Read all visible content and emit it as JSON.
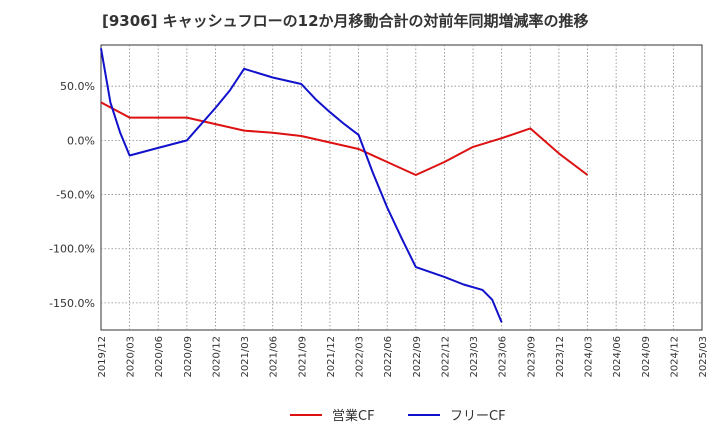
{
  "chart_data": {
    "type": "line",
    "title": "[9306]  キャッシュフローの12か月移動合計の対前年同期増減率の推移",
    "xlabel": "",
    "ylabel": "",
    "ylim": [
      -175,
      88
    ],
    "y_ticks": [
      50,
      0,
      -50,
      -100,
      -150
    ],
    "y_tick_labels": [
      "50.0%",
      "0.0%",
      "-50.0%",
      "-100.0%",
      "-150.0%"
    ],
    "x_categories": [
      "2019/12",
      "2020/03",
      "2020/06",
      "2020/09",
      "2020/12",
      "2021/03",
      "2021/06",
      "2021/09",
      "2021/12",
      "2022/03",
      "2022/06",
      "2022/09",
      "2022/12",
      "2023/03",
      "2023/06",
      "2023/09",
      "2023/12",
      "2024/03",
      "2024/06",
      "2024/09",
      "2024/12",
      "2025/03"
    ],
    "series": [
      {
        "name": "営業CF",
        "color": "#dd1111",
        "points": [
          {
            "x": 0,
            "y": 35
          },
          {
            "x": 1,
            "y": 21
          },
          {
            "x": 2,
            "y": 21
          },
          {
            "x": 3,
            "y": 21
          },
          {
            "x": 4,
            "y": 15
          },
          {
            "x": 5,
            "y": 9
          },
          {
            "x": 6,
            "y": 7
          },
          {
            "x": 7,
            "y": 4
          },
          {
            "x": 8,
            "y": -2
          },
          {
            "x": 9,
            "y": -8
          },
          {
            "x": 10,
            "y": -20
          },
          {
            "x": 11,
            "y": -32
          },
          {
            "x": 12,
            "y": -20
          },
          {
            "x": 13,
            "y": -6
          },
          {
            "x": 14,
            "y": 2
          },
          {
            "x": 15,
            "y": 11
          },
          {
            "x": 16,
            "y": -12
          },
          {
            "x": 17,
            "y": -32
          }
        ]
      },
      {
        "name": "フリーCF",
        "color": "#1111cc",
        "points": [
          {
            "x": 0,
            "y": 85
          },
          {
            "x": 0.33,
            "y": 35
          },
          {
            "x": 0.67,
            "y": 7
          },
          {
            "x": 1,
            "y": -14
          },
          {
            "x": 2,
            "y": -7
          },
          {
            "x": 3,
            "y": 0
          },
          {
            "x": 3.5,
            "y": 15
          },
          {
            "x": 4,
            "y": 30
          },
          {
            "x": 4.5,
            "y": 46
          },
          {
            "x": 5,
            "y": 66
          },
          {
            "x": 6,
            "y": 58
          },
          {
            "x": 7,
            "y": 52
          },
          {
            "x": 7.5,
            "y": 38
          },
          {
            "x": 8,
            "y": 26
          },
          {
            "x": 8.5,
            "y": 15
          },
          {
            "x": 9,
            "y": 5
          },
          {
            "x": 9.5,
            "y": -30
          },
          {
            "x": 10,
            "y": -62
          },
          {
            "x": 10.5,
            "y": -90
          },
          {
            "x": 11,
            "y": -117
          },
          {
            "x": 12,
            "y": -126
          },
          {
            "x": 12.67,
            "y": -133
          },
          {
            "x": 13.33,
            "y": -138
          },
          {
            "x": 13.67,
            "y": -147
          },
          {
            "x": 14,
            "y": -168
          }
        ]
      }
    ],
    "legend": [
      "営業CF",
      "フリーCF"
    ],
    "legend_position": "bottom-center",
    "grid": true
  }
}
